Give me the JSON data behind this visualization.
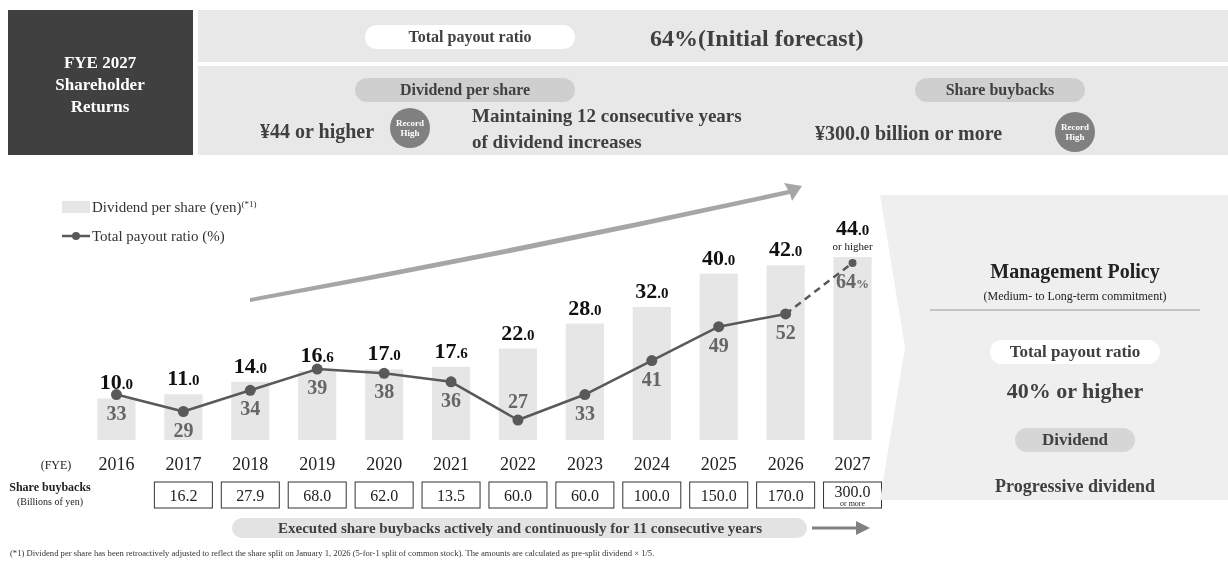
{
  "chart_data": [
    {
      "type": "other",
      "title": "FYE 2027 Shareholder Returns",
      "annotations": [
        "Total payout ratio",
        "64%(Initial forecast)",
        "Dividend per share",
        "¥44 or higher",
        "Record High",
        "Maintaining 12 consecutive years of dividend increases",
        "Share buybacks",
        "¥300.0 billion or more",
        "Record High"
      ]
    },
    {
      "type": "bar",
      "categories": [
        "2016",
        "2017",
        "2018",
        "2019",
        "2020",
        "2021",
        "2022",
        "2023",
        "2024",
        "2025",
        "2026",
        "2027"
      ],
      "xlabel": "(FYE)",
      "tick_labels": "x",
      "legend": "top left",
      "series": [
        {
          "name": "Dividend per share (yen)$^{(*1)}$",
          "type": "bar",
          "color": "#e6e6e6",
          "values": [
            10.0,
            11.0,
            14.0,
            16.6,
            17.0,
            17.6,
            22.0,
            28.0,
            32.0,
            40.0,
            42.0,
            44.0
          ],
          "value_labels": [
            "10.0",
            "11.0",
            "14.0",
            "16.6",
            "17.0",
            "17.6",
            "22.0",
            "28.0",
            "32.0",
            "40.0",
            "42.0",
            "44.0"
          ]
        },
        {
          "name": "Total payout ratio (%)",
          "type": "line",
          "axis": "y2",
          "color": "#595959",
          "marker": "circle",
          "line_style": "solid",
          "values": [
            33,
            29,
            34,
            39,
            38,
            36,
            27,
            33,
            41,
            49,
            52,
            null
          ],
          "value_labels": [
            "33",
            "29",
            "34",
            "39",
            "38",
            "36",
            "27",
            "33",
            "41",
            "49",
            "52",
            null
          ]
        },
        {
          "type": "line",
          "axis": "y2",
          "color": "#595959",
          "marker": "circle",
          "line_style": "dashed",
          "values": [
            null,
            null,
            null,
            null,
            null,
            null,
            null,
            null,
            null,
            null,
            52,
            64
          ],
          "value_labels": [
            null,
            null,
            null,
            null,
            null,
            null,
            null,
            null,
            null,
            null,
            null,
            "64%"
          ]
        }
      ],
      "annotations": [
        {
          "text": "or higher",
          "x": "2027",
          "y": 44
        },
        "(*1) Dividend per share has been retroactively adjusted to reflect the share split on January 1, 2026 (5-for-1 split of common stock). The amounts are calculated as pre-split dividend × 1/5."
      ]
    },
    {
      "type": "other",
      "title": "Share buybacks",
      "subtitle": "(Billions of yen)",
      "value_labels": [
        null,
        "16.2",
        "27.9",
        "68.0",
        "62.0",
        "13.5",
        "60.0",
        "60.0",
        "100.0",
        "150.0",
        "170.0",
        "300.0"
      ],
      "annotations": [
        "or more",
        "Executed share buybacks actively and continuously for 11 consecutive years"
      ]
    },
    {
      "type": "other",
      "title": "Management Policy",
      "subtitle": "(Medium- to Long-term commitment)",
      "annotations": [
        "Total payout ratio",
        "40% or higher",
        "Dividend",
        "Progressive dividend"
      ]
    }
  ]
}
